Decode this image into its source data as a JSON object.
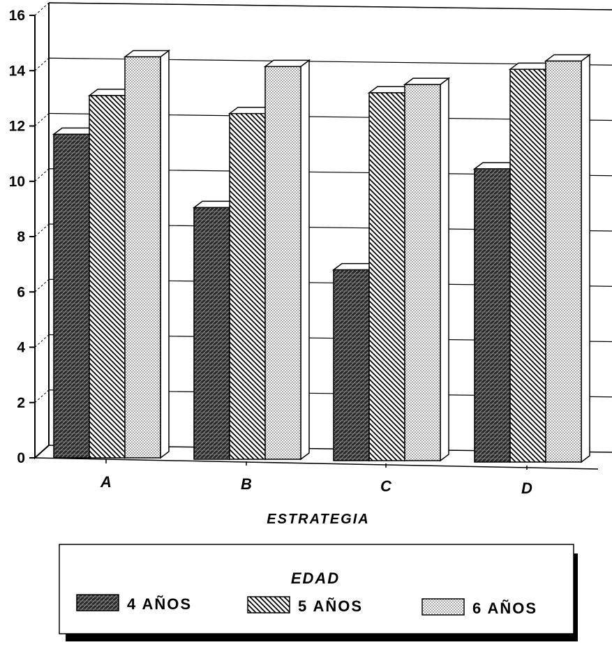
{
  "chart_data": {
    "type": "bar",
    "categories": [
      "A",
      "B",
      "C",
      "D"
    ],
    "series": [
      {
        "name": "4 AÑOS",
        "values": [
          11.7,
          9.1,
          6.9,
          10.6
        ]
      },
      {
        "name": "5 AÑOS",
        "values": [
          13.1,
          12.5,
          13.3,
          14.2
        ]
      },
      {
        "name": "6 AÑOS",
        "values": [
          14.5,
          14.2,
          13.6,
          14.5
        ]
      }
    ],
    "xlabel": "ESTRATEGIA",
    "ylabel": "",
    "ylim": [
      0,
      16
    ],
    "yticks": [
      0,
      2,
      4,
      6,
      8,
      10,
      12,
      14,
      16
    ],
    "grid": true,
    "legend_title": "EDAD",
    "legend_position": "bottom",
    "colors": {
      "bar_fill": "#bdbdbd",
      "outline": "#000000",
      "background": "#ffffff"
    },
    "patterns": [
      "dense-crosshatch",
      "diagonal-hatch",
      "dots"
    ]
  }
}
